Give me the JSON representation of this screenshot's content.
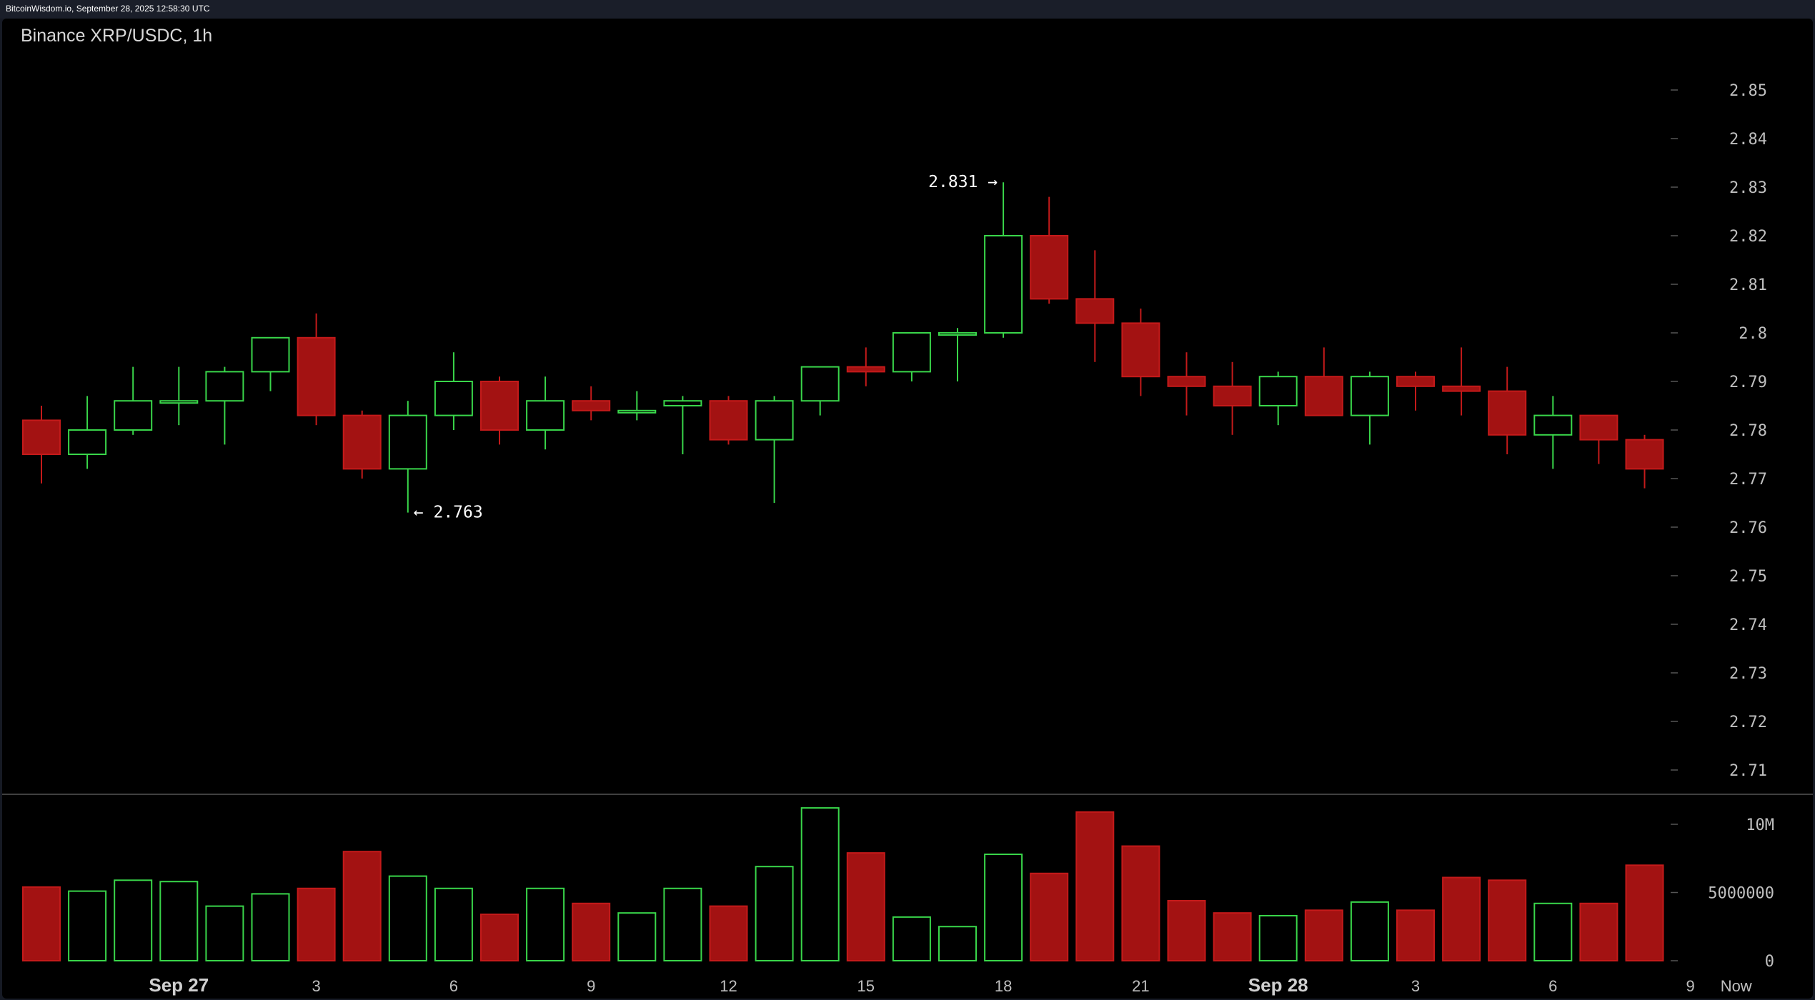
{
  "header": {
    "text": "BitcoinWisdom.io, September 28, 2025 12:58:30 UTC"
  },
  "chart_title": "Binance XRP/USDC, 1h",
  "colors": {
    "up": "#39d64a",
    "down": "#a31212",
    "down_border": "#c41a1a",
    "background": "#000000",
    "axis_text": "#bfbfbf"
  },
  "chart_data": {
    "type": "candlestick",
    "title": "Binance XRP/USDC, 1h",
    "price_axis": {
      "ticks": [
        "2.85",
        "2.84",
        "2.83",
        "2.82",
        "2.81",
        "2.8",
        "2.79",
        "2.78",
        "2.77",
        "2.76",
        "2.75",
        "2.74",
        "2.73",
        "2.72",
        "2.71"
      ],
      "range": [
        2.705,
        2.862
      ]
    },
    "volume_axis": {
      "ticks": [
        "10M",
        "5000000",
        "0"
      ],
      "range": [
        0,
        11500000
      ]
    },
    "x_labels": [
      {
        "index": 3,
        "label": "Sep 27",
        "bold": true
      },
      {
        "index": 6,
        "label": "3"
      },
      {
        "index": 9,
        "label": "6"
      },
      {
        "index": 12,
        "label": "9"
      },
      {
        "index": 15,
        "label": "12"
      },
      {
        "index": 18,
        "label": "15"
      },
      {
        "index": 21,
        "label": "18"
      },
      {
        "index": 24,
        "label": "21"
      },
      {
        "index": 27,
        "label": "Sep 28",
        "bold": true
      },
      {
        "index": 30,
        "label": "3"
      },
      {
        "index": 33,
        "label": "6"
      },
      {
        "index": 36,
        "label": "9"
      },
      {
        "index": 37,
        "label": "Now"
      }
    ],
    "annotations": [
      {
        "index": 21,
        "price": 2.831,
        "text": "2.831 →",
        "side": "left"
      },
      {
        "index": 8,
        "price": 2.763,
        "text": "← 2.763",
        "side": "right"
      }
    ],
    "candles": [
      {
        "o": 2.782,
        "h": 2.785,
        "l": 2.769,
        "c": 2.775,
        "v": 5400000
      },
      {
        "o": 2.775,
        "h": 2.787,
        "l": 2.772,
        "c": 2.78,
        "v": 5100000
      },
      {
        "o": 2.78,
        "h": 2.793,
        "l": 2.779,
        "c": 2.786,
        "v": 5900000
      },
      {
        "o": 2.786,
        "h": 2.793,
        "l": 2.781,
        "c": 2.786,
        "v": 5800000
      },
      {
        "o": 2.786,
        "h": 2.793,
        "l": 2.777,
        "c": 2.792,
        "v": 4000000
      },
      {
        "o": 2.792,
        "h": 2.799,
        "l": 2.788,
        "c": 2.799,
        "v": 4900000
      },
      {
        "o": 2.799,
        "h": 2.804,
        "l": 2.781,
        "c": 2.783,
        "v": 5300000
      },
      {
        "o": 2.783,
        "h": 2.784,
        "l": 2.77,
        "c": 2.772,
        "v": 8000000
      },
      {
        "o": 2.772,
        "h": 2.786,
        "l": 2.763,
        "c": 2.783,
        "v": 6200000
      },
      {
        "o": 2.783,
        "h": 2.796,
        "l": 2.78,
        "c": 2.79,
        "v": 5300000
      },
      {
        "o": 2.79,
        "h": 2.791,
        "l": 2.777,
        "c": 2.78,
        "v": 3400000
      },
      {
        "o": 2.78,
        "h": 2.791,
        "l": 2.776,
        "c": 2.786,
        "v": 5300000
      },
      {
        "o": 2.786,
        "h": 2.789,
        "l": 2.782,
        "c": 2.784,
        "v": 4200000
      },
      {
        "o": 2.784,
        "h": 2.788,
        "l": 2.782,
        "c": 2.784,
        "v": 3500000
      },
      {
        "o": 2.785,
        "h": 2.787,
        "l": 2.775,
        "c": 2.786,
        "v": 5300000
      },
      {
        "o": 2.786,
        "h": 2.787,
        "l": 2.777,
        "c": 2.778,
        "v": 4000000
      },
      {
        "o": 2.778,
        "h": 2.787,
        "l": 2.765,
        "c": 2.786,
        "v": 6900000
      },
      {
        "o": 2.786,
        "h": 2.793,
        "l": 2.783,
        "c": 2.793,
        "v": 11200000
      },
      {
        "o": 2.793,
        "h": 2.797,
        "l": 2.789,
        "c": 2.792,
        "v": 7900000
      },
      {
        "o": 2.792,
        "h": 2.8,
        "l": 2.79,
        "c": 2.8,
        "v": 3200000
      },
      {
        "o": 2.8,
        "h": 2.801,
        "l": 2.79,
        "c": 2.8,
        "v": 2500000
      },
      {
        "o": 2.8,
        "h": 2.831,
        "l": 2.799,
        "c": 2.82,
        "v": 7800000
      },
      {
        "o": 2.82,
        "h": 2.828,
        "l": 2.806,
        "c": 2.807,
        "v": 6400000
      },
      {
        "o": 2.807,
        "h": 2.817,
        "l": 2.794,
        "c": 2.802,
        "v": 10900000
      },
      {
        "o": 2.802,
        "h": 2.805,
        "l": 2.787,
        "c": 2.791,
        "v": 8400000
      },
      {
        "o": 2.791,
        "h": 2.796,
        "l": 2.783,
        "c": 2.789,
        "v": 4400000
      },
      {
        "o": 2.789,
        "h": 2.794,
        "l": 2.779,
        "c": 2.785,
        "v": 3500000
      },
      {
        "o": 2.785,
        "h": 2.792,
        "l": 2.781,
        "c": 2.791,
        "v": 3300000
      },
      {
        "o": 2.791,
        "h": 2.797,
        "l": 2.783,
        "c": 2.783,
        "v": 3700000
      },
      {
        "o": 2.783,
        "h": 2.792,
        "l": 2.777,
        "c": 2.791,
        "v": 4300000
      },
      {
        "o": 2.791,
        "h": 2.792,
        "l": 2.784,
        "c": 2.789,
        "v": 3700000
      },
      {
        "o": 2.789,
        "h": 2.797,
        "l": 2.783,
        "c": 2.788,
        "v": 6100000
      },
      {
        "o": 2.788,
        "h": 2.793,
        "l": 2.775,
        "c": 2.779,
        "v": 5900000
      },
      {
        "o": 2.779,
        "h": 2.787,
        "l": 2.772,
        "c": 2.783,
        "v": 4200000
      },
      {
        "o": 2.783,
        "h": 2.783,
        "l": 2.773,
        "c": 2.778,
        "v": 4200000
      },
      {
        "o": 2.778,
        "h": 2.779,
        "l": 2.768,
        "c": 2.772,
        "v": 7000000
      }
    ]
  }
}
